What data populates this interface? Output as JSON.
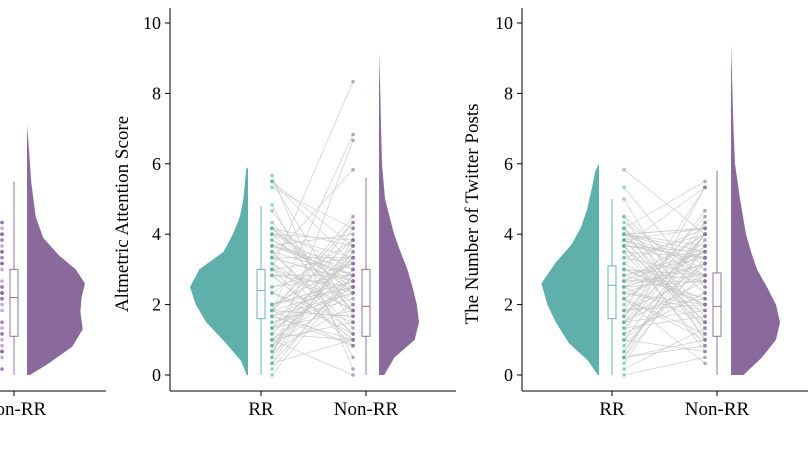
{
  "colors": {
    "rr": "#5fb0aa",
    "nonrr": "#8a6a9c",
    "line": "#c8c8c8",
    "axis": "#000000"
  },
  "chart_data": [
    {
      "type": "raincloud",
      "title": "",
      "xlabel": "",
      "ylabel": "",
      "categories": [
        "Non-RR"
      ],
      "ylim": [
        0,
        10
      ],
      "yticks": [],
      "nonrr": {
        "median": 2.2,
        "q1": 1.1,
        "q3": 3.0,
        "whisker_low": 0.0,
        "whisker_high": 5.5,
        "max": 7.1
      }
    },
    {
      "type": "raincloud",
      "title": "",
      "xlabel": "",
      "ylabel": "Altmetric Attention Score",
      "categories": [
        "RR",
        "Non-RR"
      ],
      "ylim": [
        0,
        10
      ],
      "yticks": [
        "0",
        "2",
        "4",
        "6",
        "8",
        "10"
      ],
      "rr": {
        "median": 2.4,
        "q1": 1.6,
        "q3": 3.0,
        "whisker_low": 0.0,
        "whisker_high": 4.8,
        "max": 5.9
      },
      "nonrr": {
        "median": 1.95,
        "q1": 1.1,
        "q3": 3.0,
        "whisker_low": 0.0,
        "whisker_high": 5.6,
        "max": 9.15
      }
    },
    {
      "type": "raincloud",
      "title": "",
      "xlabel": "",
      "ylabel": "The Number of Twitter Posts",
      "categories": [
        "RR",
        "Non-RR"
      ],
      "ylim": [
        0,
        10
      ],
      "yticks": [
        "0",
        "2",
        "4",
        "6",
        "8",
        "10"
      ],
      "rr": {
        "median": 2.55,
        "q1": 1.6,
        "q3": 3.1,
        "whisker_low": 0.0,
        "whisker_high": 5.0,
        "max": 6.0
      },
      "nonrr": {
        "median": 1.95,
        "q1": 1.1,
        "q3": 2.9,
        "whisker_low": 0.0,
        "whisker_high": 5.8,
        "max": 9.4
      }
    }
  ]
}
